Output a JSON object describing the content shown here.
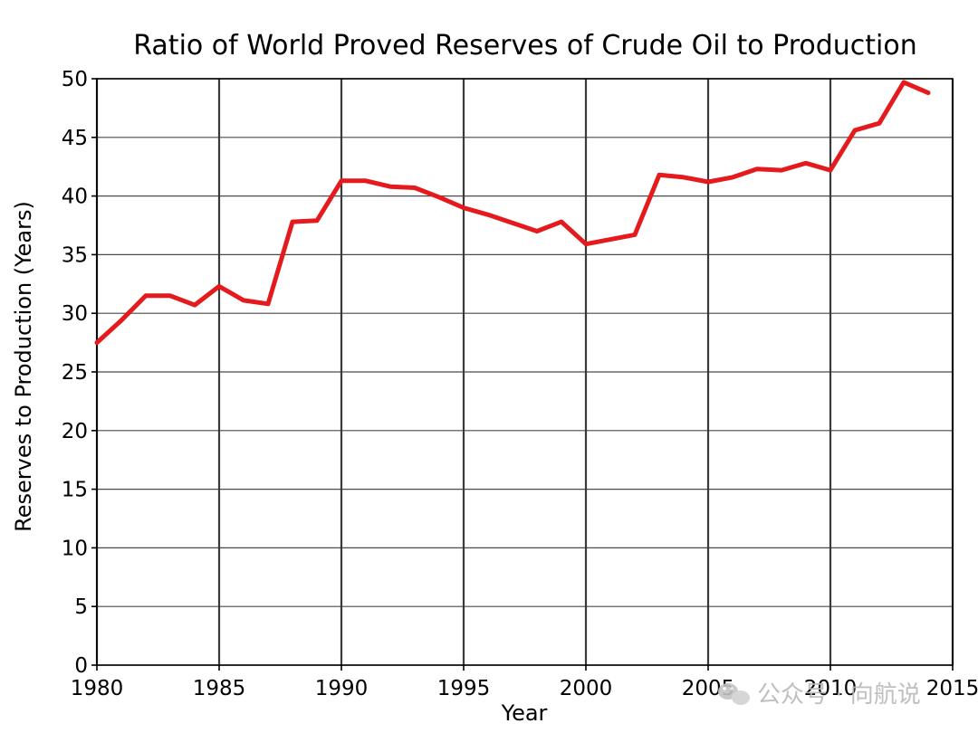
{
  "chart_data": {
    "type": "line",
    "title": "Ratio of World Proved Reserves of Crude Oil to Production",
    "xlabel": "Year",
    "ylabel": "Reserves to Production (Years)",
    "xlim": [
      1980,
      2015
    ],
    "ylim": [
      0,
      50
    ],
    "x_ticks": [
      1980,
      1985,
      1990,
      1995,
      2000,
      2005,
      2010,
      2015
    ],
    "y_ticks": [
      0,
      5,
      10,
      15,
      20,
      25,
      30,
      35,
      40,
      45,
      50
    ],
    "grid": true,
    "series": [
      {
        "color": "#e41a1c",
        "x": [
          1980,
          1981,
          1982,
          1983,
          1984,
          1985,
          1986,
          1987,
          1988,
          1989,
          1990,
          1991,
          1992,
          1993,
          1994,
          1995,
          1996,
          1997,
          1998,
          1999,
          2000,
          2001,
          2002,
          2003,
          2004,
          2005,
          2006,
          2007,
          2008,
          2009,
          2010,
          2011,
          2012,
          2013,
          2014
        ],
        "y": [
          27.5,
          29.4,
          31.5,
          31.5,
          30.7,
          32.3,
          31.1,
          30.8,
          37.8,
          37.9,
          41.3,
          41.3,
          40.8,
          40.7,
          39.9,
          39.0,
          38.4,
          37.7,
          37.0,
          37.8,
          35.9,
          36.3,
          36.7,
          41.8,
          41.6,
          41.2,
          41.6,
          42.3,
          42.2,
          42.8,
          42.2,
          45.6,
          46.2,
          49.7,
          48.8
        ]
      }
    ]
  },
  "watermark": {
    "text": "公众号 · 向航说",
    "icon": "wechat-icon"
  }
}
